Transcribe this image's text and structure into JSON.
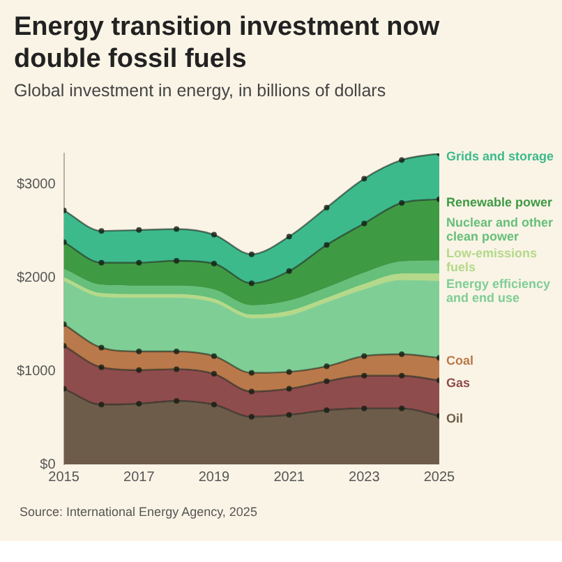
{
  "chart_data": {
    "type": "area",
    "title": "Energy transition investment now double fossil fuels",
    "subtitle": "Global investment in energy, in billions of dollars",
    "stacked": true,
    "legend": "right",
    "ylim": [
      0,
      3330
    ],
    "grid": false,
    "x": [
      2015,
      2016,
      2017,
      2018,
      2019,
      2020,
      2021,
      2022,
      2023,
      2024,
      2025
    ],
    "xlim": [
      2015,
      2025
    ],
    "xticks": [
      2015,
      2017,
      2019,
      2021,
      2023,
      2025
    ],
    "yticks": [
      {
        "value": 0,
        "label": "$0"
      },
      {
        "value": 1000,
        "label": "$1000"
      },
      {
        "value": 2000,
        "label": "$2000"
      },
      {
        "value": 3000,
        "label": "$3000"
      }
    ],
    "series": [
      {
        "name": "Oil",
        "color": "#6e5c4a",
        "marker": "circle",
        "values": [
          810,
          640,
          650,
          680,
          640,
          510,
          530,
          580,
          600,
          600,
          520
        ]
      },
      {
        "name": "Gas",
        "color": "#8e4c4c",
        "marker": "circle",
        "values": [
          460,
          400,
          360,
          340,
          330,
          270,
          280,
          310,
          350,
          350,
          380
        ]
      },
      {
        "name": "Coal",
        "color": "#b9794a",
        "marker": "circle",
        "values": [
          230,
          210,
          200,
          190,
          190,
          200,
          180,
          160,
          210,
          230,
          240
        ]
      },
      {
        "name": "Energy efficiency and end use",
        "color": "#7fce95",
        "marker": "none",
        "values": [
          460,
          540,
          570,
          570,
          570,
          580,
          600,
          680,
          710,
          790,
          820
        ]
      },
      {
        "name": "Low-emissions fuels",
        "color": "#b4d98a",
        "marker": "none",
        "values": [
          40,
          40,
          40,
          40,
          40,
          40,
          50,
          50,
          60,
          70,
          80
        ]
      },
      {
        "name": "Nuclear and other clean power",
        "color": "#66bf7a",
        "marker": "none",
        "values": [
          90,
          90,
          90,
          90,
          100,
          100,
          110,
          110,
          120,
          130,
          140
        ]
      },
      {
        "name": "Renewable power",
        "color": "#3f9a44",
        "marker": "circle",
        "values": [
          290,
          240,
          250,
          270,
          280,
          240,
          320,
          460,
          530,
          630,
          660
        ]
      },
      {
        "name": "Grids and storage",
        "color": "#3dba8c",
        "marker": "circle",
        "values": [
          340,
          340,
          350,
          340,
          310,
          310,
          370,
          400,
          480,
          460,
          490
        ]
      }
    ],
    "annotations": [
      "Source: International Energy Agency, 2025"
    ]
  }
}
